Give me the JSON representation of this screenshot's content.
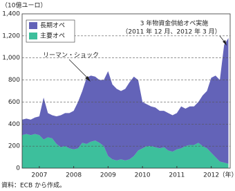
{
  "chart_data": {
    "type": "stacked_area",
    "y_label": "（10億ユーロ）",
    "x_unit": "（年）",
    "source": "資料：ECB から作成。",
    "annotations": [
      "リーマン・ショック",
      "3 年物資金供給オペ実施",
      "（2011 年 12 月、2012 年 3 月）"
    ],
    "x": [
      2007,
      2007.125,
      2007.25,
      2007.375,
      2007.5,
      2007.625,
      2007.75,
      2007.875,
      2008,
      2008.125,
      2008.25,
      2008.375,
      2008.5,
      2008.625,
      2008.75,
      2008.875,
      2009,
      2009.125,
      2009.25,
      2009.375,
      2009.5,
      2009.625,
      2009.75,
      2009.875,
      2010,
      2010.125,
      2010.25,
      2010.375,
      2010.5,
      2010.625,
      2010.75,
      2010.875,
      2011,
      2011.125,
      2011.25,
      2011.375,
      2011.5,
      2011.625,
      2011.75,
      2011.875,
      2012,
      2012.125,
      2012.25,
      2012.375,
      2012.5,
      2012.625,
      2012.75,
      2012.875,
      2013
    ],
    "series": [
      {
        "name": "主要オペ",
        "color": "#3dbf9c",
        "values": [
          300,
          310,
          300,
          310,
          300,
          260,
          280,
          270,
          220,
          190,
          200,
          180,
          170,
          180,
          230,
          220,
          240,
          250,
          230,
          200,
          110,
          80,
          70,
          80,
          70,
          80,
          110,
          160,
          180,
          200,
          200,
          190,
          180,
          190,
          160,
          150,
          170,
          180,
          200,
          210,
          210,
          230,
          200,
          180,
          140,
          100,
          60,
          50,
          40
        ]
      },
      {
        "name": "長期オペ",
        "color": "#6363b8",
        "values": [
          140,
          140,
          140,
          150,
          170,
          380,
          220,
          210,
          250,
          290,
          300,
          320,
          350,
          420,
          470,
          600,
          600,
          580,
          570,
          600,
          770,
          680,
          650,
          620,
          650,
          700,
          720,
          640,
          420,
          380,
          360,
          360,
          340,
          330,
          340,
          330,
          330,
          380,
          340,
          350,
          350,
          370,
          460,
          520,
          680,
          740,
          740,
          1070,
          1140
        ]
      }
    ],
    "xlim": [
      2007,
      2013.05
    ],
    "xticks": [
      {
        "value": 2007.5,
        "label": "2007"
      },
      {
        "value": 2008.5,
        "label": "2008"
      },
      {
        "value": 2009.5,
        "label": "2009"
      },
      {
        "value": 2010.5,
        "label": "2010"
      },
      {
        "value": 2011.5,
        "label": "2011"
      },
      {
        "value": 2012.5,
        "label": "2012"
      }
    ],
    "ylim": [
      0,
      1400
    ],
    "yticks": [
      0,
      200,
      400,
      600,
      800,
      {
        "value": 1000,
        "label": "1,000"
      },
      {
        "value": 1200,
        "label": "1,200"
      },
      {
        "value": 1400,
        "label": "1,400"
      }
    ],
    "grid": true,
    "legend": "upper left"
  }
}
